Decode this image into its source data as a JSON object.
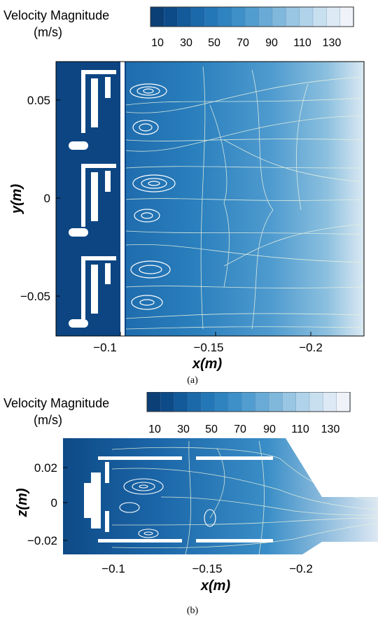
{
  "panels": [
    {
      "id": "a",
      "caption": "(a)",
      "colorbar": {
        "title": "Velocity Magnitude",
        "unit": "(m/s)",
        "ticks": [
          "10",
          "30",
          "50",
          "70",
          "90",
          "110",
          "130"
        ],
        "colors": [
          "#0b3f76",
          "#0d4b88",
          "#135a9a",
          "#1b69a9",
          "#2477b6",
          "#2f84c0",
          "#3d90c8",
          "#529dcf",
          "#69abd6",
          "#80b8dc",
          "#99c6e3",
          "#b1d3ea",
          "#c8dff0",
          "#dde9f4",
          "#eff3f9"
        ]
      },
      "xaxis": {
        "label": "x(m)",
        "ticks": [
          "−0.1",
          "−0.15",
          "−0.2"
        ]
      },
      "yaxis": {
        "label": "y(m)",
        "ticks": [
          "0.05",
          "0",
          "−0.05"
        ]
      }
    },
    {
      "id": "b",
      "caption": "(b)",
      "colorbar": {
        "title": "Velocity Magnitude",
        "unit": "(m/s)",
        "ticks": [
          "10",
          "30",
          "50",
          "70",
          "90",
          "110",
          "130"
        ],
        "colors": [
          "#0b3f76",
          "#0d4b88",
          "#135a9a",
          "#1b69a9",
          "#2477b6",
          "#2f84c0",
          "#3d90c8",
          "#529dcf",
          "#69abd6",
          "#80b8dc",
          "#99c6e3",
          "#b1d3ea",
          "#c8dff0",
          "#dde9f4",
          "#eff3f9"
        ]
      },
      "xaxis": {
        "label": "x(m)",
        "ticks": [
          "−0.1",
          "−0.15",
          "−0.2"
        ]
      },
      "yaxis": {
        "label": "z(m)",
        "ticks": [
          "0.02",
          "0",
          "−0.02"
        ]
      }
    }
  ]
}
